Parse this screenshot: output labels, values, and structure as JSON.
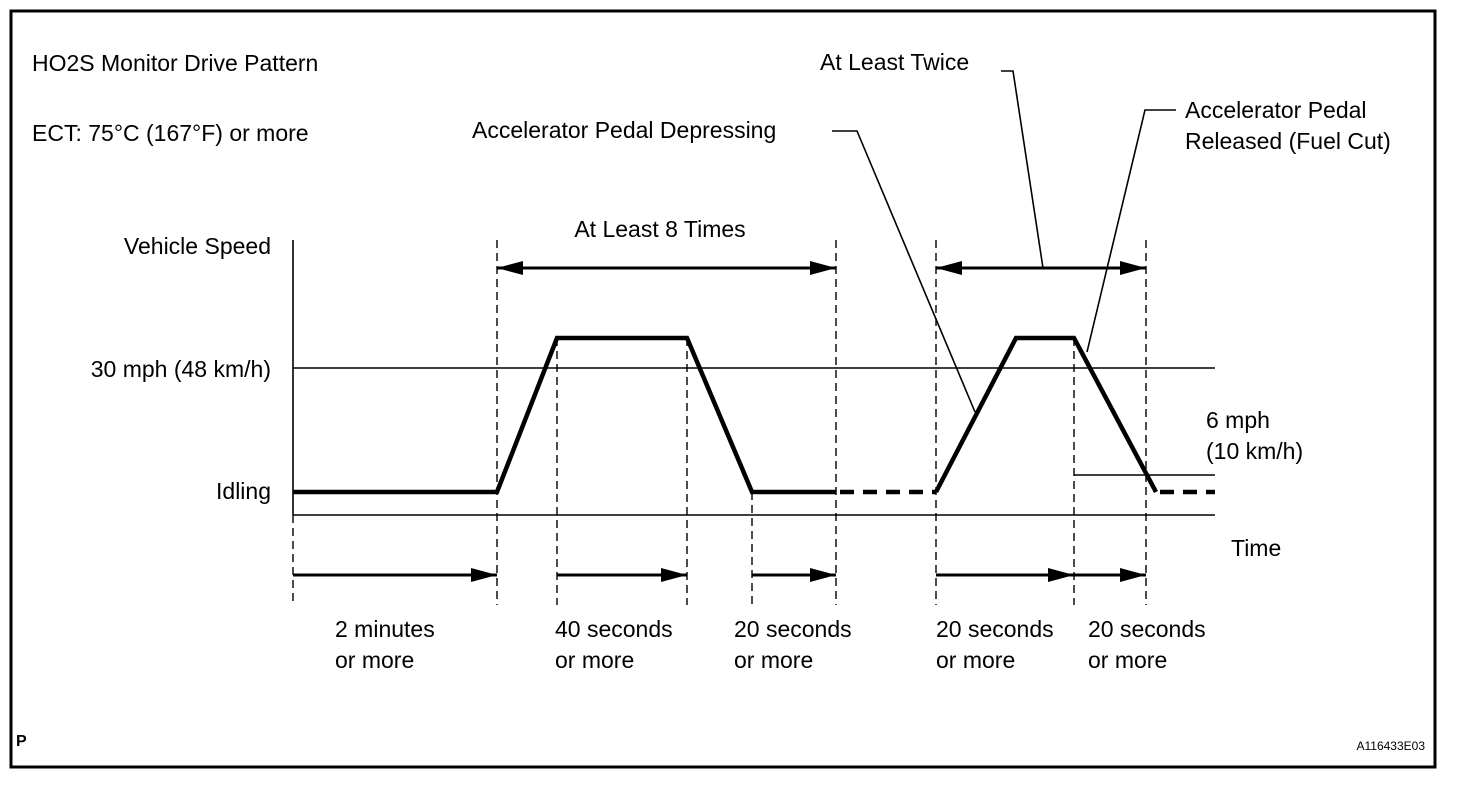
{
  "title": "HO2S Monitor Drive Pattern",
  "condition": "ECT: 75°C (167°F)  or more",
  "y_axis": {
    "label": "Vehicle Speed",
    "levels": {
      "speed_30": "30 mph (48 km/h)",
      "idle": "Idling"
    }
  },
  "x_axis": {
    "label": "Time"
  },
  "annotations": {
    "at_least_8": "At Least 8 Times",
    "at_least_twice": "At Least Twice",
    "pedal_depressing": "Accelerator Pedal Depressing",
    "pedal_released_1": "Accelerator Pedal",
    "pedal_released_2": "Released (Fuel Cut)",
    "six_mph_1": "6 mph",
    "six_mph_2": "(10 km/h)"
  },
  "durations": [
    {
      "l1": "2 minutes",
      "l2": "or more"
    },
    {
      "l1": "40 seconds",
      "l2": "or more"
    },
    {
      "l1": "20 seconds",
      "l2": "or more"
    },
    {
      "l1": "20 seconds",
      "l2": "or more"
    },
    {
      "l1": "20 seconds",
      "l2": "or more"
    }
  ],
  "footer": {
    "left_mark": "P",
    "figure_code": "A116433E03"
  }
}
